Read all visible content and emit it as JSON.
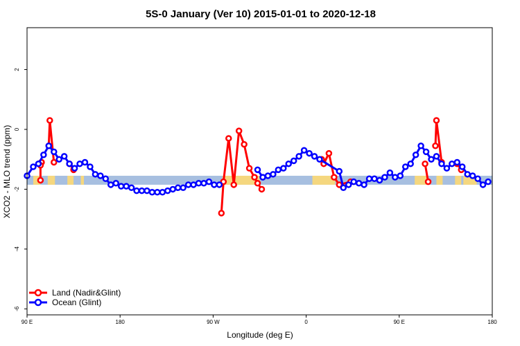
{
  "chart_data": {
    "type": "line",
    "title": "5S-0 January (Ver 10)   2015-01-01 to 2020-12-18",
    "xlabel": "Longitude (deg E)",
    "ylabel": "XCO2 - MLO trend (ppm)",
    "x_tick_labels": [
      "90 E",
      "180",
      "90 W",
      "0",
      "90 E",
      "180"
    ],
    "x_ticks": [
      90,
      180,
      270,
      360,
      450,
      540
    ],
    "y_ticks": [
      -6,
      -4,
      -2,
      0,
      2
    ],
    "xlim": [
      90,
      540
    ],
    "ylim": [
      -6.2,
      3.4
    ],
    "legend_position": "bottom-left",
    "colors": {
      "land": "#ff0000",
      "ocean": "#0000ff",
      "band_ocean": "#a7bfe0",
      "band_land": "#f5d77f"
    },
    "series": [
      {
        "name": "Land (Nadir&Glint)",
        "color": "#ff0000",
        "segments": [
          [
            [
              103,
              -1.15
            ],
            [
              104,
              -1.1
            ],
            [
              104,
              -1.1
            ]
          ],
          [
            [
              103,
              -1.2
            ],
            [
              103,
              -1.7
            ]
          ],
          [
            [
              111,
              -0.55
            ],
            [
              112,
              0.3
            ],
            [
              116,
              -1.1
            ]
          ],
          [
            [
              131,
              -1.15
            ],
            [
              135,
              -1.35
            ]
          ],
          [
            [
              278,
              -2.8
            ],
            [
              280,
              -1.75
            ],
            [
              285,
              -0.3
            ],
            [
              290,
              -1.85
            ],
            [
              295,
              -0.05
            ],
            [
              300,
              -0.5
            ],
            [
              305,
              -1.3
            ],
            [
              310,
              -1.6
            ],
            [
              313,
              -1.8
            ],
            [
              317,
              -2.0
            ]
          ],
          [
            [
              375,
              -1.0
            ],
            [
              377,
              -1.15
            ],
            [
              382,
              -0.8
            ],
            [
              387,
              -1.6
            ],
            [
              392,
              -1.85
            ],
            [
              403,
              -1.75
            ]
          ],
          [
            [
              475,
              -1.15
            ],
            [
              478,
              -1.75
            ]
          ],
          [
            [
              485,
              -0.55
            ],
            [
              486,
              0.3
            ],
            [
              491,
              -1.1
            ]
          ],
          [
            [
              506,
              -1.15
            ],
            [
              510,
              -1.35
            ]
          ]
        ]
      },
      {
        "name": "Ocean (Glint)",
        "color": "#0000ff",
        "points": [
          [
            90,
            -1.55
          ],
          [
            96,
            -1.25
          ],
          [
            101,
            -1.15
          ],
          [
            106,
            -0.85
          ],
          [
            111,
            -0.55
          ],
          [
            116,
            -0.75
          ],
          [
            121,
            -1.0
          ],
          [
            126,
            -0.9
          ],
          [
            131,
            -1.15
          ],
          [
            136,
            -1.3
          ],
          [
            141,
            -1.15
          ],
          [
            146,
            -1.1
          ],
          [
            151,
            -1.25
          ],
          [
            156,
            -1.5
          ],
          [
            161,
            -1.55
          ],
          [
            166,
            -1.65
          ],
          [
            171,
            -1.85
          ],
          [
            176,
            -1.8
          ],
          [
            181,
            -1.9
          ],
          [
            186,
            -1.9
          ],
          [
            191,
            -1.95
          ],
          [
            196,
            -2.05
          ],
          [
            201,
            -2.05
          ],
          [
            206,
            -2.05
          ],
          [
            211,
            -2.1
          ],
          [
            216,
            -2.1
          ],
          [
            221,
            -2.1
          ],
          [
            226,
            -2.05
          ],
          [
            231,
            -2.0
          ],
          [
            236,
            -1.95
          ],
          [
            241,
            -1.95
          ],
          [
            246,
            -1.85
          ],
          [
            251,
            -1.85
          ],
          [
            256,
            -1.8
          ],
          [
            261,
            -1.8
          ],
          [
            266,
            -1.75
          ],
          [
            271,
            -1.85
          ],
          [
            276,
            -1.85
          ],
          [
            313,
            -1.35
          ],
          [
            318,
            -1.6
          ],
          [
            323,
            -1.55
          ],
          [
            328,
            -1.5
          ],
          [
            333,
            -1.35
          ],
          [
            338,
            -1.3
          ],
          [
            343,
            -1.15
          ],
          [
            348,
            -1.05
          ],
          [
            353,
            -0.9
          ],
          [
            358,
            -0.7
          ],
          [
            363,
            -0.8
          ],
          [
            368,
            -0.9
          ],
          [
            373,
            -1.0
          ],
          [
            392,
            -1.4
          ],
          [
            396,
            -1.95
          ],
          [
            401,
            -1.85
          ],
          [
            406,
            -1.75
          ],
          [
            411,
            -1.8
          ],
          [
            416,
            -1.85
          ],
          [
            421,
            -1.65
          ],
          [
            426,
            -1.65
          ],
          [
            431,
            -1.7
          ],
          [
            436,
            -1.6
          ],
          [
            441,
            -1.45
          ],
          [
            446,
            -1.6
          ],
          [
            451,
            -1.55
          ],
          [
            456,
            -1.25
          ],
          [
            461,
            -1.15
          ],
          [
            466,
            -0.85
          ],
          [
            471,
            -0.55
          ],
          [
            476,
            -0.75
          ],
          [
            481,
            -1.0
          ],
          [
            486,
            -0.9
          ],
          [
            491,
            -1.15
          ],
          [
            496,
            -1.3
          ],
          [
            501,
            -1.15
          ],
          [
            506,
            -1.1
          ],
          [
            511,
            -1.25
          ],
          [
            516,
            -1.5
          ],
          [
            521,
            -1.55
          ],
          [
            526,
            -1.65
          ],
          [
            531,
            -1.85
          ],
          [
            536,
            -1.75
          ]
        ],
        "breaks_after_index": [
          37
        ]
      }
    ],
    "surface_band": {
      "y_top": -1.55,
      "y_bottom": -1.85,
      "land_ranges": [
        [
          96,
          103
        ],
        [
          110,
          117
        ],
        [
          129,
          135
        ],
        [
          142,
          145
        ],
        [
          279,
          315
        ],
        [
          366,
          388
        ],
        [
          465,
          478
        ],
        [
          486,
          492
        ],
        [
          504,
          510
        ],
        [
          512,
          525
        ]
      ]
    }
  }
}
